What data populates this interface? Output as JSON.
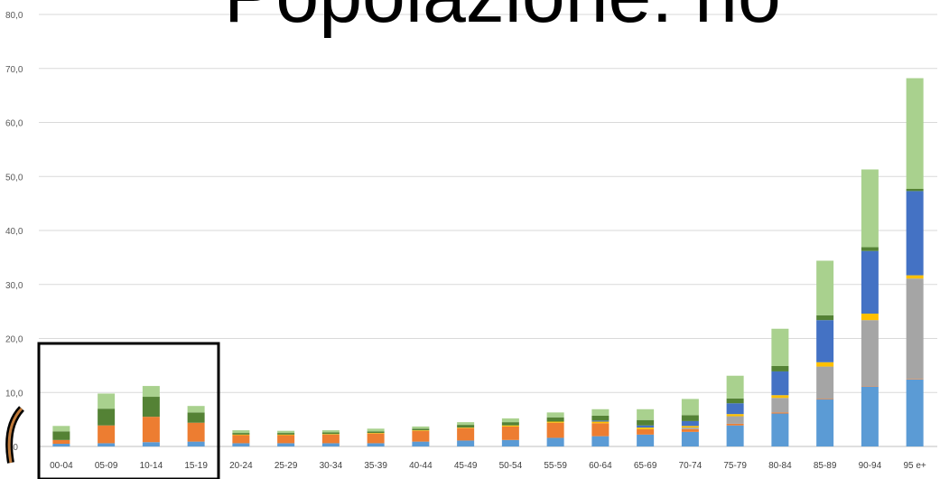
{
  "chart_data": {
    "type": "bar",
    "stacked": true,
    "title": "Popolazione: no",
    "categories": [
      "00-04",
      "05-09",
      "10-14",
      "15-19",
      "20-24",
      "25-29",
      "30-34",
      "35-39",
      "40-44",
      "45-49",
      "50-54",
      "55-59",
      "60-64",
      "65-69",
      "70-74",
      "75-79",
      "80-84",
      "85-89",
      "90-94",
      "95 e+"
    ],
    "ylim": [
      0,
      80
    ],
    "yticks": [
      "0,0",
      "10,0",
      "20,0",
      "30,0",
      "40,0",
      "50,0",
      "60,0",
      "70,0",
      "80,0"
    ],
    "grid": true,
    "legend": "none",
    "series": [
      {
        "color": "#5b9bd5",
        "values": [
          0.5,
          0.6,
          0.8,
          0.9,
          0.6,
          0.6,
          0.6,
          0.6,
          0.9,
          1.1,
          1.2,
          1.6,
          1.9,
          2.2,
          2.7,
          3.9,
          6.1,
          8.7,
          11.1,
          12.4
        ]
      },
      {
        "color": "#ed7d31",
        "values": [
          0.7,
          3.3,
          4.7,
          3.5,
          1.5,
          1.5,
          1.6,
          1.8,
          2.0,
          2.3,
          2.5,
          2.8,
          2.4,
          1.0,
          0.5,
          0.3,
          0.2,
          0.1,
          0.1,
          0.1
        ]
      },
      {
        "color": "#a5a5a5",
        "values": [
          0,
          0,
          0,
          0,
          0,
          0,
          0,
          0,
          0,
          0,
          0,
          0,
          0,
          0,
          0.3,
          1.4,
          2.7,
          6.0,
          12.2,
          18.6
        ]
      },
      {
        "color": "#ffc000",
        "values": [
          0,
          0,
          0,
          0,
          0.1,
          0.1,
          0.1,
          0.1,
          0.1,
          0.1,
          0.2,
          0.2,
          0.3,
          0.3,
          0.3,
          0.4,
          0.5,
          0.8,
          1.2,
          0.6
        ]
      },
      {
        "color": "#4472c4",
        "values": [
          0,
          0,
          0,
          0,
          0,
          0,
          0,
          0,
          0,
          0,
          0,
          0,
          0.2,
          0.4,
          0.9,
          2.0,
          4.4,
          7.8,
          11.6,
          15.6
        ]
      },
      {
        "color": "#548235",
        "values": [
          1.6,
          3.1,
          3.7,
          1.9,
          0.3,
          0.3,
          0.3,
          0.3,
          0.3,
          0.5,
          0.6,
          0.8,
          0.9,
          1.0,
          1.1,
          0.9,
          1.0,
          0.9,
          0.7,
          0.4
        ]
      },
      {
        "color": "#a9d18e",
        "values": [
          1.0,
          2.8,
          2.0,
          1.2,
          0.5,
          0.4,
          0.4,
          0.5,
          0.4,
          0.5,
          0.7,
          0.9,
          1.2,
          2.0,
          3.0,
          4.2,
          6.9,
          10.1,
          14.4,
          20.5
        ]
      }
    ]
  }
}
